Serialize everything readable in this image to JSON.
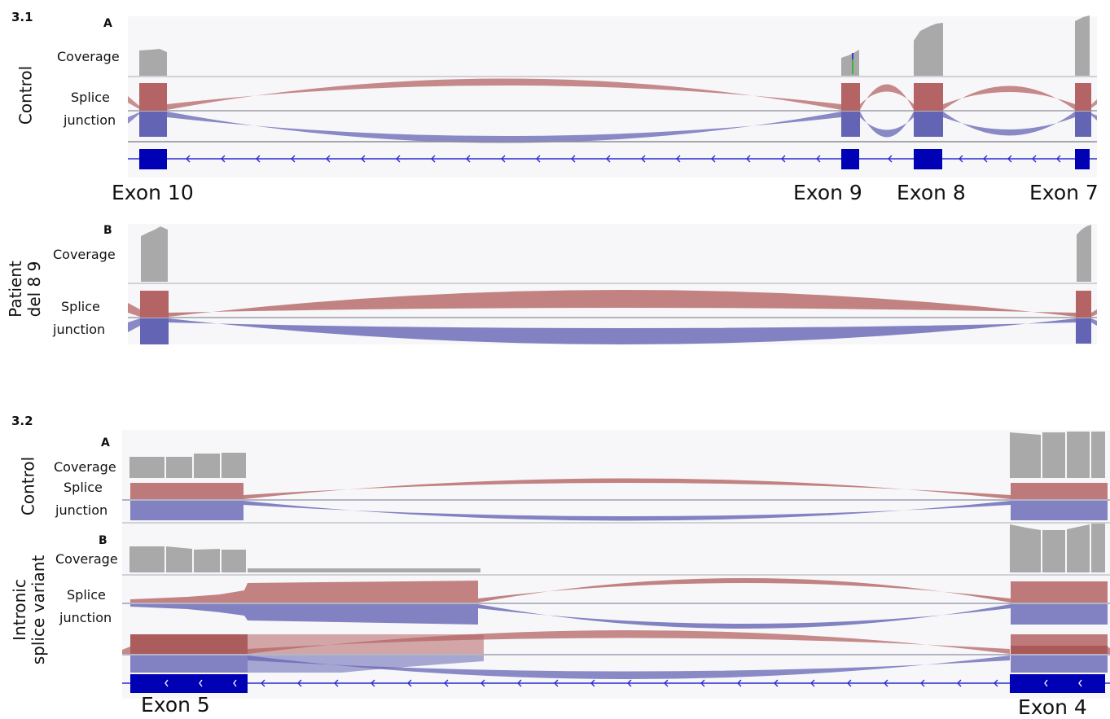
{
  "figure_3_1": {
    "section_label": "3.1",
    "panel_a": {
      "panel_label": "A",
      "sample_label": "Control",
      "coverage_label": "Coverage",
      "splice_label_line1": "Splice",
      "splice_label_line2": "junction"
    },
    "panel_b": {
      "panel_label": "B",
      "sample_label_line1": "Patient",
      "sample_label_line2": "del 8 9",
      "coverage_label": "Coverage",
      "splice_label_line1": "Splice",
      "splice_label_line2": "junction"
    },
    "exon_labels": [
      "Exon 10",
      "Exon 9",
      "Exon 8",
      "Exon 7"
    ]
  },
  "figure_3_2": {
    "section_label": "3.2",
    "panel_a": {
      "panel_label": "A",
      "sample_label": "Control",
      "coverage_label": "Coverage",
      "splice_label_line1": "Splice",
      "splice_label_line2": "junction"
    },
    "panel_b": {
      "panel_label": "B",
      "sample_label_line1": "Intronic",
      "sample_label_line2": "splice variant",
      "coverage_label": "Coverage",
      "splice_label_line1": "Splice",
      "splice_label_line2": "junction"
    },
    "exon_labels": [
      "Exon 5",
      "Exon 4"
    ]
  },
  "colors": {
    "coverage_gray": "#a9a9a9",
    "forward_junction_red": "#b46464",
    "reverse_junction_blue": "#6464b4",
    "exon_block_blue": "#0000b4",
    "track_background": "#f7f7f9"
  }
}
